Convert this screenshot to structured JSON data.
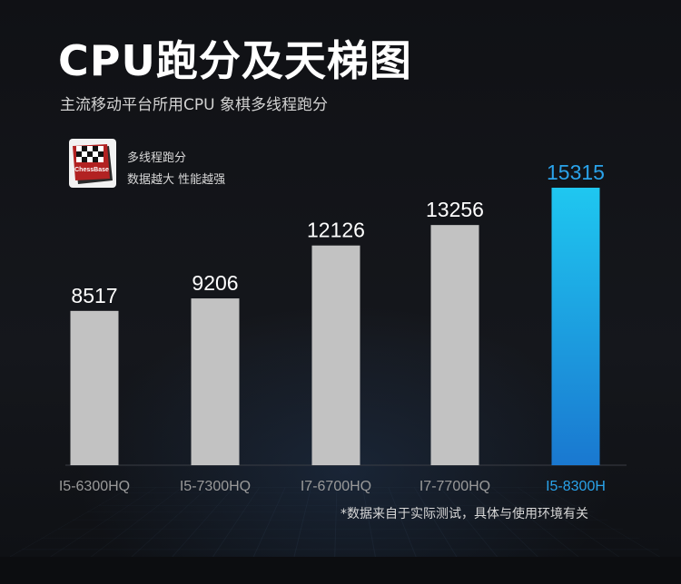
{
  "header": {
    "title": "CPU跑分及天梯图",
    "subtitle": "主流移动平台所用CPU 象棋多线程跑分"
  },
  "legend": {
    "logo_text": "ChessBase",
    "line1": "多线程跑分",
    "line2": "数据越大 性能越强"
  },
  "footnote": "*数据来自于实际测试，具体与使用环境有关",
  "colors": {
    "bar": "#c2c2c2",
    "highlight_top": "#1fc7f0",
    "highlight_bottom": "#1a78d0",
    "highlight_text": "#2aa3ea",
    "label_text": "#ffffff",
    "tick_text": "#9a9a9a"
  },
  "chart_data": {
    "type": "bar",
    "categories": [
      "I5-6300HQ",
      "I5-7300HQ",
      "I7-6700HQ",
      "I7-7700HQ",
      "I5-8300H"
    ],
    "values": [
      8517,
      9206,
      12126,
      13256,
      15315
    ],
    "highlight_index": 4,
    "title": "CPU跑分及天梯图",
    "xlabel": "",
    "ylabel": "",
    "ylim": [
      0,
      16000
    ],
    "grid": false,
    "legend": "top-left"
  }
}
